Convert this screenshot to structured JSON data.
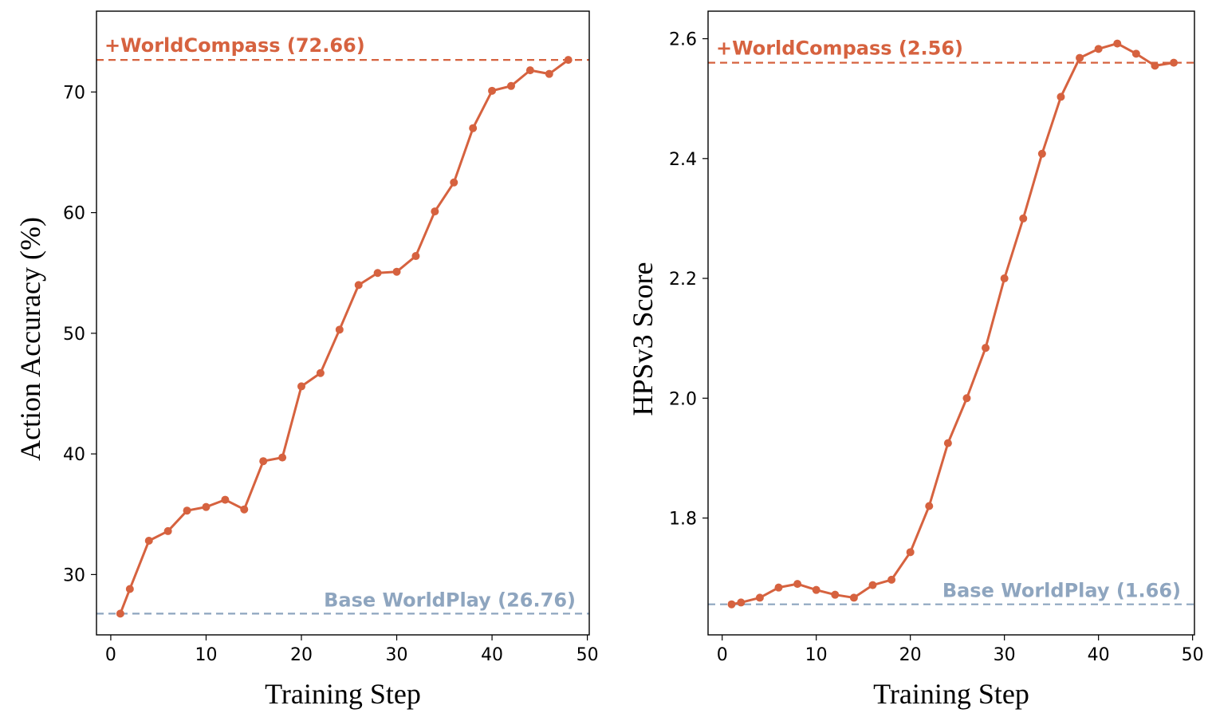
{
  "colors": {
    "series": "#D6623F",
    "top_reference": "#D6623F",
    "base_reference": "#8EA5BF",
    "axes": "#000000"
  },
  "chart_data": [
    {
      "type": "line",
      "xlabel": "Training Step",
      "ylabel": "Action Accuracy (%)",
      "xlim": [
        -1.5,
        50.2
      ],
      "ylim": [
        25,
        76.7
      ],
      "x_ticks": [
        0,
        10,
        20,
        30,
        40,
        50
      ],
      "y_ticks": [
        30,
        40,
        50,
        60,
        70
      ],
      "grid": false,
      "series": [
        {
          "x": [
            1,
            2,
            4,
            6,
            8,
            10,
            12,
            14,
            16,
            18,
            20,
            22,
            24,
            26,
            28,
            30,
            32,
            34,
            36,
            38,
            40,
            42,
            44,
            46,
            48
          ],
          "values": [
            26.76,
            28.8,
            32.8,
            33.6,
            35.3,
            35.6,
            36.2,
            35.4,
            39.4,
            39.7,
            45.6,
            46.7,
            50.3,
            54.0,
            55.0,
            55.1,
            56.4,
            60.1,
            62.5,
            67.0,
            70.1,
            70.5,
            71.8,
            71.5,
            72.66
          ]
        }
      ],
      "reference_lines": [
        {
          "label": "+WorldCompass (72.66)",
          "value": 72.66,
          "role": "top",
          "label_position": "top-left"
        },
        {
          "label": "Base WorldPlay (26.76)",
          "value": 26.76,
          "role": "base",
          "label_position": "bottom-right"
        }
      ]
    },
    {
      "type": "line",
      "xlabel": "Training Step",
      "ylabel": "HPSv3 Score",
      "xlim": [
        -1.5,
        50.2
      ],
      "ylim": [
        1.605,
        2.646
      ],
      "x_ticks": [
        0,
        10,
        20,
        30,
        40,
        50
      ],
      "y_ticks": [
        1.8,
        2.0,
        2.2,
        2.4,
        2.6
      ],
      "y_tick_labels": [
        "1.8",
        "2.0",
        "2.2",
        "2.4",
        "2.6"
      ],
      "grid": false,
      "series": [
        {
          "x": [
            1,
            2,
            4,
            6,
            8,
            10,
            12,
            14,
            16,
            18,
            20,
            22,
            24,
            26,
            28,
            30,
            32,
            34,
            36,
            38,
            40,
            42,
            44,
            46,
            48
          ],
          "values": [
            1.656,
            1.659,
            1.667,
            1.684,
            1.69,
            1.68,
            1.672,
            1.667,
            1.688,
            1.697,
            1.743,
            1.82,
            1.925,
            2.0,
            2.084,
            2.2,
            2.3,
            2.408,
            2.503,
            2.568,
            2.583,
            2.592,
            2.575,
            2.555,
            2.56
          ]
        }
      ],
      "reference_lines": [
        {
          "label": "+WorldCompass (2.56)",
          "value": 2.56,
          "role": "top",
          "label_position": "top-left"
        },
        {
          "label": "Base WorldPlay (1.66)",
          "value": 1.656,
          "role": "base",
          "label_position": "bottom-right"
        }
      ]
    }
  ]
}
